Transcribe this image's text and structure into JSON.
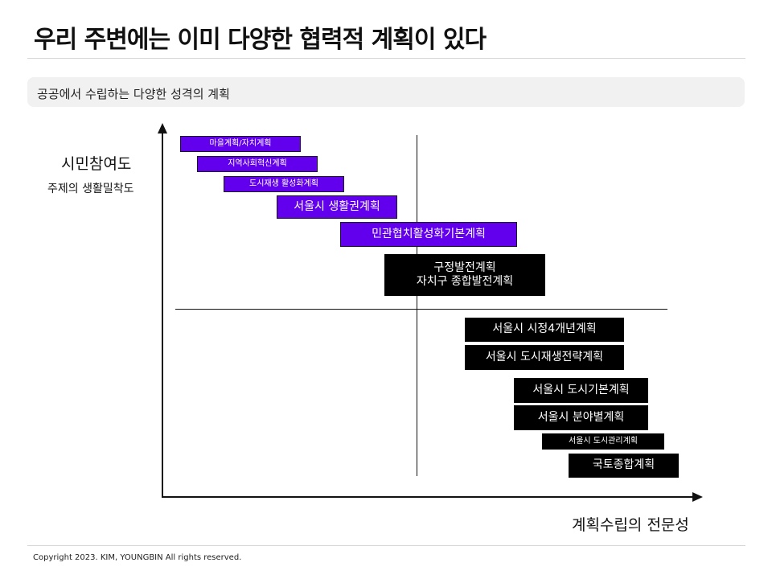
{
  "title": "우리 주변에는 이미 다양한 협력적 계획이 있다",
  "subtitle": "공공에서 수립하는 다양한 성격의 계획",
  "y_axis": {
    "title": "시민참여도",
    "subtitle": "주제의 생활밀착도"
  },
  "x_axis": {
    "title": "계획수립의 전문성"
  },
  "plans": [
    {
      "label": "마을계획/자치계획",
      "style": "purple"
    },
    {
      "label": "지역사회혁신계획",
      "style": "purple"
    },
    {
      "label": "도시재생 활성화계획",
      "style": "purple"
    },
    {
      "label": "서울시 생활권계획",
      "style": "purple"
    },
    {
      "label": "민관협치활성화기본계획",
      "style": "purple"
    },
    {
      "label": "구정발전계획\n자치구 종합발전계획",
      "style": "black"
    },
    {
      "label": "서울시 시정4개년계획",
      "style": "black"
    },
    {
      "label": "서울시 도시재생전략계획",
      "style": "black"
    },
    {
      "label": "서울시 도시기본계획",
      "style": "black"
    },
    {
      "label": "서울시 분야별계획",
      "style": "black"
    },
    {
      "label": "서울시 도시관리계획",
      "style": "black"
    },
    {
      "label": "국토종합계획",
      "style": "black"
    }
  ],
  "colors": {
    "accent": "#6200ee",
    "dark": "#000000"
  },
  "footer": "Copyright 2023. KIM, YOUNGBIN All rights reserved."
}
